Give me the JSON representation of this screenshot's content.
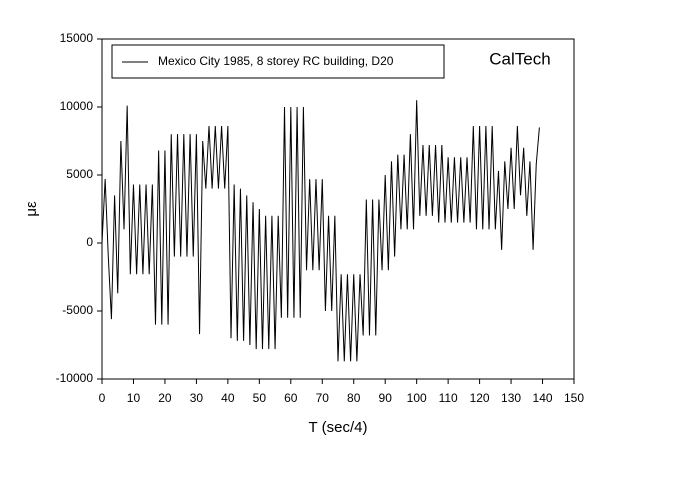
{
  "chart_data": {
    "type": "line",
    "xlabel": "T (sec/4)",
    "ylabel": "με",
    "annotation": "CalTech",
    "xlim": [
      0,
      150
    ],
    "xticks": [
      0,
      10,
      20,
      30,
      40,
      50,
      60,
      70,
      80,
      90,
      100,
      110,
      120,
      130,
      140,
      150
    ],
    "ylim": [
      -10000,
      15000
    ],
    "yticks": [
      -10000,
      -5000,
      0,
      5000,
      10000,
      15000
    ],
    "legend": "top-left",
    "x": [
      0,
      1,
      2,
      3,
      4,
      5,
      6,
      7,
      8,
      9,
      10,
      11,
      12,
      13,
      14,
      15,
      16,
      17,
      18,
      19,
      20,
      21,
      22,
      23,
      24,
      25,
      26,
      27,
      28,
      29,
      30,
      31,
      32,
      33,
      34,
      35,
      36,
      37,
      38,
      39,
      40,
      41,
      42,
      43,
      44,
      45,
      46,
      47,
      48,
      49,
      50,
      51,
      52,
      53,
      54,
      55,
      56,
      57,
      58,
      59,
      60,
      61,
      62,
      63,
      64,
      65,
      66,
      67,
      68,
      69,
      70,
      71,
      72,
      73,
      74,
      75,
      76,
      77,
      78,
      79,
      80,
      81,
      82,
      83,
      84,
      85,
      86,
      87,
      88,
      89,
      90,
      91,
      92,
      93,
      94,
      95,
      96,
      97,
      98,
      99,
      100,
      101,
      102,
      103,
      104,
      105,
      106,
      107,
      108,
      109,
      110,
      111,
      112,
      113,
      114,
      115,
      116,
      117,
      118,
      119,
      120,
      121,
      122,
      123,
      124,
      125,
      126,
      127,
      128,
      129,
      130,
      131,
      132,
      133,
      134,
      135,
      136,
      137,
      138,
      139
    ],
    "series": [
      {
        "name": "Mexico City 1985, 8 storey RC building, D20",
        "color": "#000000",
        "values": [
          0,
          4700,
          -1000,
          -5600,
          3500,
          -3700,
          7500,
          1000,
          10100,
          -2300,
          4300,
          -2300,
          4300,
          -2300,
          4300,
          -2300,
          4300,
          -6000,
          6800,
          -6000,
          6800,
          -6000,
          8000,
          -1000,
          8000,
          -1000,
          8000,
          -1000,
          8000,
          -1000,
          8000,
          -6700,
          7500,
          4000,
          8600,
          4000,
          8600,
          4000,
          8600,
          4000,
          8600,
          -7000,
          4300,
          -7200,
          4000,
          -7200,
          3500,
          -7500,
          3000,
          -7800,
          2500,
          -7800,
          2000,
          -7800,
          2000,
          -7800,
          2000,
          -5500,
          10000,
          -5500,
          10000,
          -5500,
          10000,
          -5500,
          10000,
          -2000,
          4700,
          -2000,
          4700,
          -2000,
          4700,
          -5000,
          2000,
          -5000,
          2000,
          -8700,
          -2300,
          -8700,
          -2300,
          -8700,
          -2300,
          -8700,
          -2300,
          -6800,
          3200,
          -6800,
          3200,
          -6800,
          3200,
          -2000,
          5000,
          -2000,
          6000,
          -1000,
          6500,
          1000,
          6500,
          1000,
          8000,
          1000,
          10500,
          2000,
          7200,
          2000,
          7200,
          2000,
          7200,
          1500,
          7200,
          1500,
          6300,
          1500,
          6300,
          1500,
          6300,
          1500,
          6300,
          1500,
          8600,
          1000,
          8600,
          1000,
          8600,
          1000,
          8600,
          1000,
          5300,
          -500,
          6000,
          2500,
          7000,
          2500,
          8600,
          3500,
          7000,
          2000,
          6000,
          -500,
          5800,
          8500
        ]
      }
    ]
  }
}
